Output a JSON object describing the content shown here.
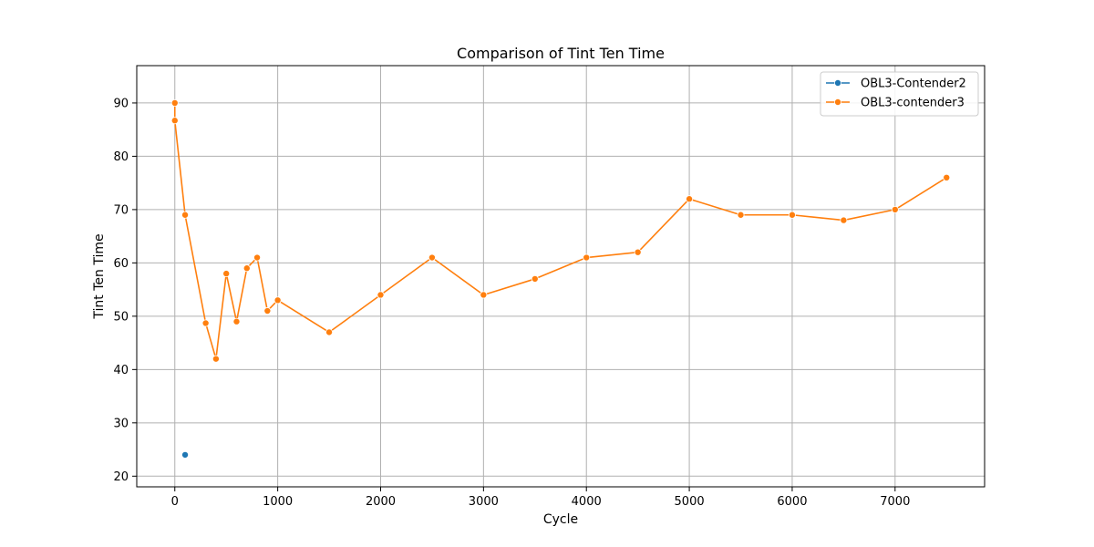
{
  "chart_data": {
    "type": "line",
    "title": "Comparison of Tint Ten Time",
    "xlabel": "Cycle",
    "ylabel": "Tint Ten Time",
    "xlim": [
      -370,
      7870
    ],
    "ylim": [
      18,
      97
    ],
    "xticks": [
      0,
      1000,
      2000,
      3000,
      4000,
      5000,
      6000,
      7000
    ],
    "yticks": [
      20,
      30,
      40,
      50,
      60,
      70,
      80,
      90
    ],
    "grid": true,
    "legend_position": "top-right",
    "series": [
      {
        "name": "OBL3-Contender2",
        "color": "#1f77b4",
        "x": [
          100
        ],
        "y": [
          24
        ]
      },
      {
        "name": "OBL3-contender3",
        "color": "#ff7f0e",
        "x": [
          0,
          0,
          100,
          300,
          400,
          500,
          600,
          700,
          800,
          900,
          1000,
          1500,
          2000,
          2500,
          3000,
          3500,
          4000,
          4500,
          5000,
          5500,
          6000,
          6500,
          7000,
          7500
        ],
        "y": [
          90,
          86.7,
          69,
          48.7,
          42,
          58,
          49,
          59,
          61,
          51,
          53,
          47,
          54,
          61,
          54,
          57,
          61,
          62,
          72,
          69,
          69,
          68,
          70,
          76
        ]
      }
    ]
  }
}
